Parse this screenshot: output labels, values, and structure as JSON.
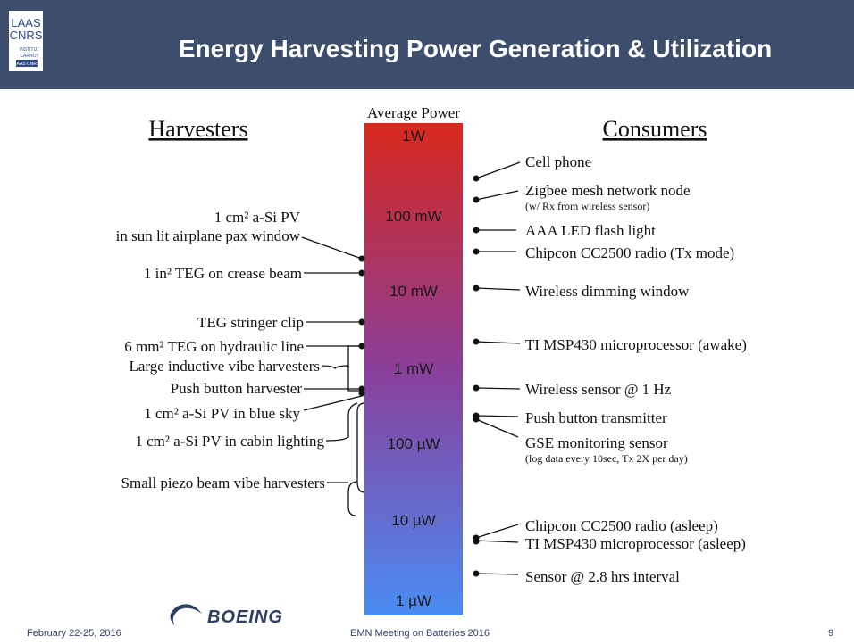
{
  "header": {
    "title": "Energy Harvesting Power Generation & Utilization",
    "logo": {
      "line1": "LAAS",
      "line2": "CNRS",
      "line3": "INSTITUT",
      "line4": "CARNOT",
      "line5": "LAAS CNRS"
    }
  },
  "scale": {
    "caption": "Average Power",
    "levels": [
      "1W",
      "100 mW",
      "10 mW",
      "1 mW",
      "100 µW",
      "10 µW",
      "1 µW"
    ]
  },
  "harvesters": {
    "heading": "Harvesters",
    "items": [
      [
        "1 cm² a-Si PV",
        "in sun lit airplane pax window"
      ],
      [
        "1 in² TEG on crease beam"
      ],
      [
        "TEG stringer clip"
      ],
      [
        "6 mm² TEG on hydraulic line"
      ],
      [
        "Large inductive vibe harvesters"
      ],
      [
        "Push button harvester"
      ],
      [
        "1 cm² a-Si PV in blue sky"
      ],
      [
        "1 cm² a-Si PV in cabin lighting"
      ],
      [
        "Small piezo beam vibe harvesters"
      ]
    ]
  },
  "consumers": {
    "heading": "Consumers",
    "items": [
      [
        "Cell phone"
      ],
      [
        "Zigbee mesh network node",
        "(w/ Rx from wireless sensor)"
      ],
      [
        "AAA LED flash light"
      ],
      [
        "Chipcon CC2500 radio (Tx mode)"
      ],
      [
        "Wireless dimming window"
      ],
      [
        "TI MSP430 microprocessor (awake)"
      ],
      [
        "Wireless sensor @ 1 Hz"
      ],
      [
        "Push button transmitter"
      ],
      [
        "GSE monitoring sensor",
        "(log data every 10sec, Tx 2X per day)"
      ],
      [
        "Chipcon CC2500 radio (asleep)"
      ],
      [
        "TI MSP430 microprocessor (asleep)"
      ],
      [
        "Sensor @ 2.8 hrs interval"
      ]
    ]
  },
  "footer": {
    "date": "February 22-25, 2016",
    "logo": "BOEING",
    "event": "EMN Meeting on Batteries 2016",
    "page": "9"
  }
}
